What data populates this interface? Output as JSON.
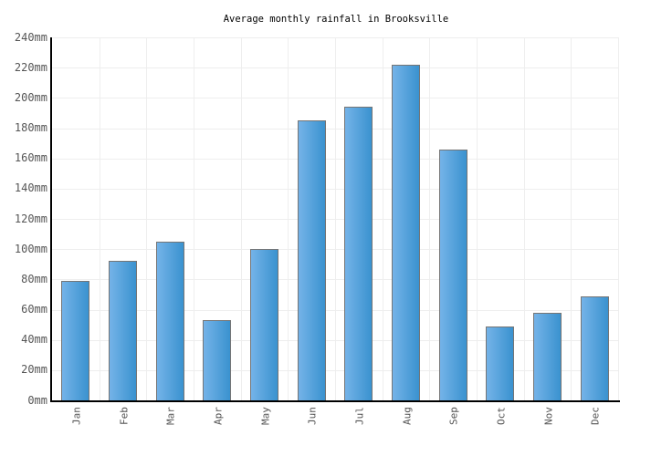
{
  "page": {
    "background": "#ffffff"
  },
  "chart_data": {
    "type": "bar",
    "title": "Average monthly rainfall in Brooksville",
    "xlabel": "",
    "ylabel": "",
    "unit": "mm",
    "categories": [
      "Jan",
      "Feb",
      "Mar",
      "Apr",
      "May",
      "Jun",
      "Jul",
      "Aug",
      "Sep",
      "Oct",
      "Nov",
      "Dec"
    ],
    "values": [
      79,
      92,
      105,
      53,
      100,
      185,
      194,
      222,
      166,
      49,
      58,
      69
    ],
    "ylim": [
      0,
      240
    ],
    "ytick_step": 20,
    "ytick_labels": [
      "0mm",
      "20mm",
      "40mm",
      "60mm",
      "80mm",
      "100mm",
      "120mm",
      "140mm",
      "160mm",
      "180mm",
      "200mm",
      "220mm",
      "240mm"
    ],
    "grid": true,
    "legend_position": "none",
    "colors": {
      "bar_gradient_left": "#74b3e8",
      "bar_gradient_right": "#3a92cf",
      "bar_border": "#757575",
      "grid_line": "#eeeeee",
      "axis_line": "#000000",
      "tick_label": "#555555",
      "title": "#000000",
      "background": "#ffffff"
    }
  }
}
